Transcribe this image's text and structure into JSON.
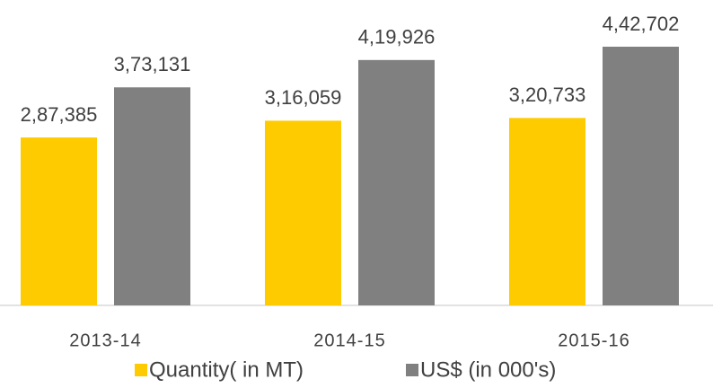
{
  "chart_data": {
    "type": "bar",
    "categories": [
      "2013-14",
      "2014-15",
      "2015-16"
    ],
    "series": [
      {
        "name": "Quantity( in MT)",
        "color": "#fdcb00",
        "values": [
          287385,
          316059,
          320733
        ],
        "value_labels": [
          "2,87,385",
          "3,16,059",
          "3,20,733"
        ]
      },
      {
        "name": "US$ (in 000's)",
        "color": "#808080",
        "values": [
          373131,
          419926,
          442702
        ],
        "value_labels": [
          "3,73,131",
          "4,19,926",
          "4,42,702"
        ]
      }
    ],
    "legend": "bottom"
  }
}
